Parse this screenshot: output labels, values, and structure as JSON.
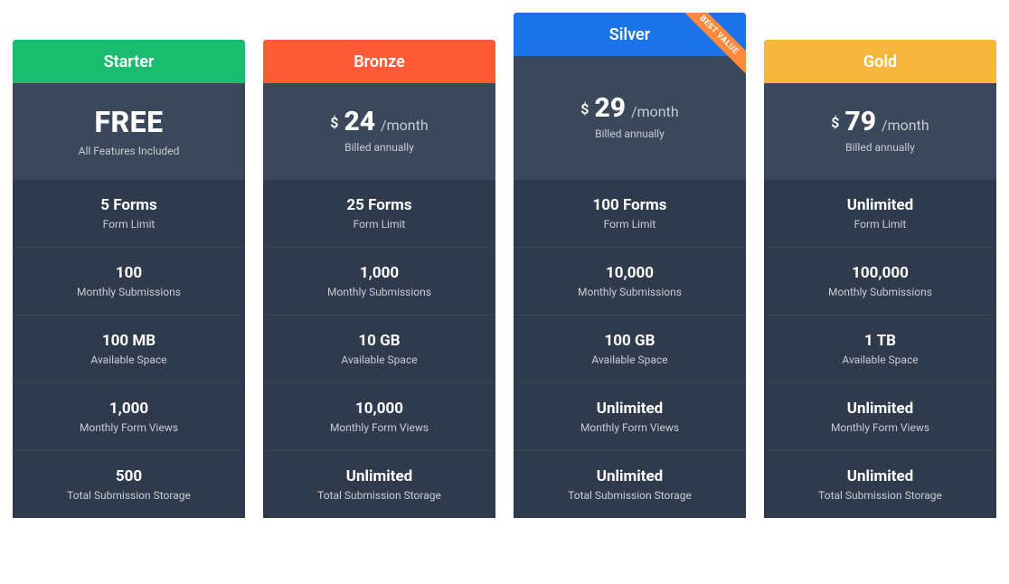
{
  "colors": {
    "card_body": "#2f3b4c",
    "price_block": "#3b475a",
    "ribbon": "#ff8a3c"
  },
  "plans": [
    {
      "id": "starter",
      "name": "Starter",
      "header_color": "#1abc70",
      "featured": false,
      "badge": null,
      "price_type": "free",
      "price_free_text": "FREE",
      "price_currency": "",
      "price_amount": "",
      "price_period": "",
      "price_sub": "All Features Included",
      "features": [
        {
          "value": "5 Forms",
          "label": "Form Limit"
        },
        {
          "value": "100",
          "label": "Monthly Submissions"
        },
        {
          "value": "100 MB",
          "label": "Available Space"
        },
        {
          "value": "1,000",
          "label": "Monthly Form Views"
        },
        {
          "value": "500",
          "label": "Total Submission Storage"
        }
      ]
    },
    {
      "id": "bronze",
      "name": "Bronze",
      "header_color": "#ff5a36",
      "featured": false,
      "badge": null,
      "price_type": "paid",
      "price_free_text": "",
      "price_currency": "$",
      "price_amount": "24",
      "price_period": "/month",
      "price_sub": "Billed annually",
      "features": [
        {
          "value": "25 Forms",
          "label": "Form Limit"
        },
        {
          "value": "1,000",
          "label": "Monthly Submissions"
        },
        {
          "value": "10 GB",
          "label": "Available Space"
        },
        {
          "value": "10,000",
          "label": "Monthly Form Views"
        },
        {
          "value": "Unlimited",
          "label": "Total Submission Storage"
        }
      ]
    },
    {
      "id": "silver",
      "name": "Silver",
      "header_color": "#1a73e8",
      "featured": true,
      "badge": "BEST VALUE",
      "price_type": "paid",
      "price_free_text": "",
      "price_currency": "$",
      "price_amount": "29",
      "price_period": "/month",
      "price_sub": "Billed annually",
      "features": [
        {
          "value": "100 Forms",
          "label": "Form Limit"
        },
        {
          "value": "10,000",
          "label": "Monthly Submissions"
        },
        {
          "value": "100 GB",
          "label": "Available Space"
        },
        {
          "value": "Unlimited",
          "label": "Monthly Form Views"
        },
        {
          "value": "Unlimited",
          "label": "Total Submission Storage"
        }
      ]
    },
    {
      "id": "gold",
      "name": "Gold",
      "header_color": "#f6b73c",
      "featured": false,
      "badge": null,
      "price_type": "paid",
      "price_free_text": "",
      "price_currency": "$",
      "price_amount": "79",
      "price_period": "/month",
      "price_sub": "Billed annually",
      "features": [
        {
          "value": "Unlimited",
          "label": "Form Limit"
        },
        {
          "value": "100,000",
          "label": "Monthly Submissions"
        },
        {
          "value": "1 TB",
          "label": "Available Space"
        },
        {
          "value": "Unlimited",
          "label": "Monthly Form Views"
        },
        {
          "value": "Unlimited",
          "label": "Total Submission Storage"
        }
      ]
    }
  ]
}
